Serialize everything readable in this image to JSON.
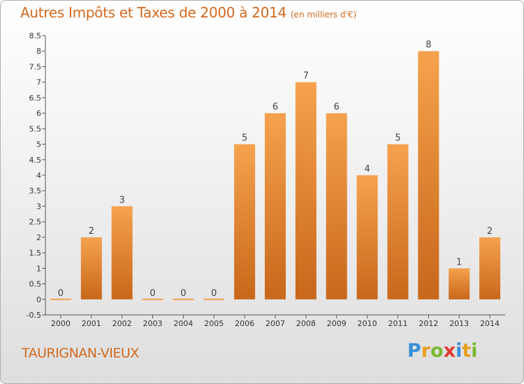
{
  "title": {
    "main": "Autres Impôts et Taxes de 2000 à 2014",
    "unit": "(en milliers d'€)"
  },
  "place_name": "TAURIGNAN-VIEUX",
  "brand": {
    "text": "Proxiti",
    "letters": [
      "P",
      "r",
      "o",
      "x",
      "i",
      "t",
      "i"
    ]
  },
  "colors": {
    "bar_light": "#f5a24e",
    "bar_dark": "#c8671a",
    "title": "#d2691e"
  },
  "chart_data": {
    "type": "bar",
    "categories": [
      "2000",
      "2001",
      "2002",
      "2003",
      "2004",
      "2005",
      "2006",
      "2007",
      "2008",
      "2009",
      "2010",
      "2011",
      "2012",
      "2013",
      "2014"
    ],
    "values": [
      0,
      2,
      3,
      0,
      0,
      0,
      5,
      6,
      7,
      6,
      4,
      5,
      8,
      1,
      2
    ],
    "value_labels": [
      "0",
      "2",
      "3",
      "0",
      "0",
      "0",
      "5",
      "6",
      "7",
      "6",
      "4",
      "5",
      "8",
      "1",
      "2"
    ],
    "yticks": [
      "-0.5",
      "0",
      "0.5",
      "1",
      "1.5",
      "2",
      "2.5",
      "3",
      "3.5",
      "4",
      "4.5",
      "5",
      "5.5",
      "6",
      "6.5",
      "7",
      "7.5",
      "8",
      "8.5"
    ],
    "ylim": [
      -0.5,
      8.5
    ],
    "grid": false
  }
}
